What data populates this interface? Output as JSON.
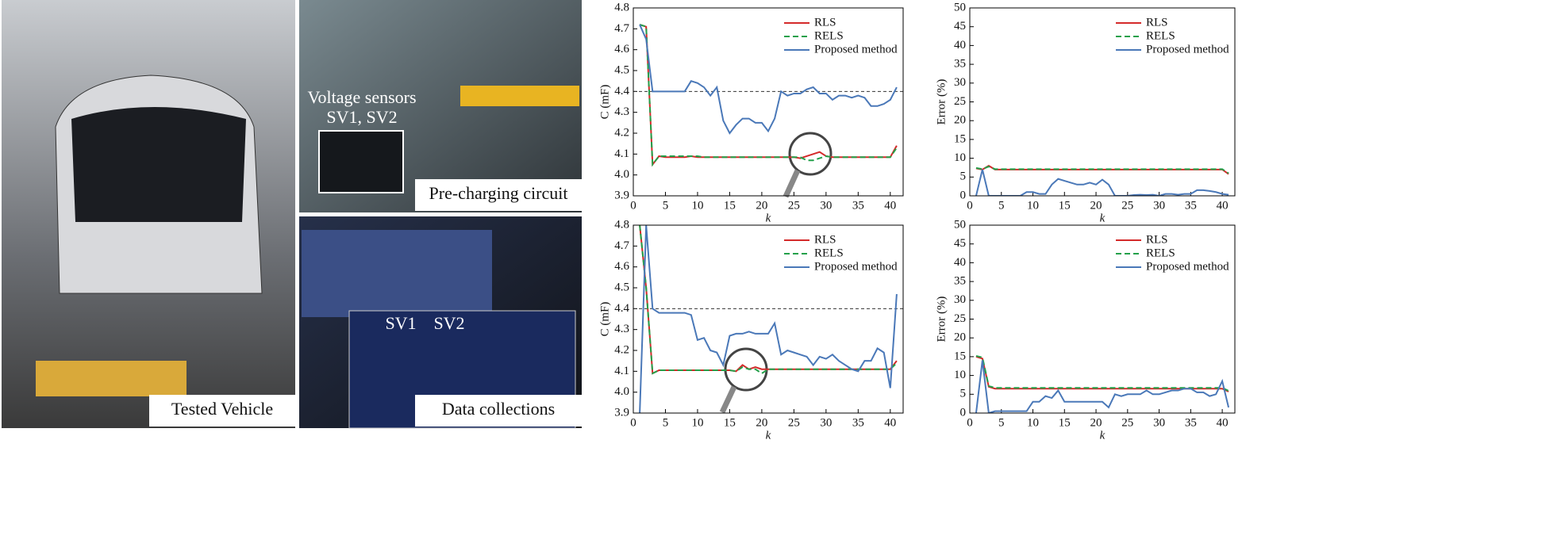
{
  "photos": [
    {
      "caption": "Tested Vehicle"
    },
    {
      "caption": "Pre-charging circuit",
      "labels": [
        "Voltage sensors",
        "SV1, SV2"
      ]
    },
    {
      "caption": "Data collections",
      "labels": [
        "SV1",
        "SV2"
      ]
    }
  ],
  "chart_data": [
    {
      "type": "line",
      "ylabel": "C (mF)",
      "xlabel": "k",
      "legend": "upper right",
      "refline": 4.4,
      "x": [
        1,
        2,
        3,
        4,
        5,
        6,
        7,
        8,
        9,
        10,
        11,
        12,
        13,
        14,
        15,
        16,
        17,
        18,
        19,
        20,
        21,
        22,
        23,
        24,
        25,
        26,
        27,
        28,
        29,
        30,
        31,
        32,
        33,
        34,
        35,
        36,
        37,
        38,
        39,
        40,
        41
      ],
      "xlim": [
        0,
        42
      ],
      "xticks": [
        0,
        5,
        10,
        15,
        20,
        25,
        30,
        35,
        40
      ],
      "ylim": [
        3.9,
        4.8
      ],
      "yticks": [
        3.9,
        {
          "value": 4.0,
          "label": "4.0"
        },
        4.1,
        4.2,
        4.3,
        4.4,
        4.5,
        4.6,
        4.7,
        4.8
      ],
      "series": [
        {
          "name": "RLS",
          "color": "#d42a2a",
          "dash": false,
          "values": [
            4.72,
            4.71,
            4.05,
            4.09,
            4.085,
            4.085,
            4.085,
            4.085,
            4.09,
            4.085,
            4.085,
            4.085,
            4.085,
            4.085,
            4.085,
            4.085,
            4.085,
            4.085,
            4.085,
            4.085,
            4.085,
            4.085,
            4.085,
            4.085,
            4.085,
            4.08,
            4.09,
            4.1,
            4.11,
            4.09,
            4.085,
            4.085,
            4.085,
            4.085,
            4.085,
            4.085,
            4.085,
            4.085,
            4.085,
            4.085,
            4.14
          ]
        },
        {
          "name": "RELS",
          "color": "#23a04a",
          "dash": true,
          "values": [
            4.72,
            4.71,
            4.05,
            4.09,
            4.09,
            4.09,
            4.09,
            4.09,
            4.09,
            4.09,
            4.085,
            4.085,
            4.085,
            4.085,
            4.085,
            4.085,
            4.085,
            4.085,
            4.085,
            4.085,
            4.085,
            4.085,
            4.085,
            4.085,
            4.085,
            4.085,
            4.07,
            4.07,
            4.08,
            4.09,
            4.085,
            4.085,
            4.085,
            4.085,
            4.085,
            4.085,
            4.085,
            4.085,
            4.085,
            4.085,
            4.13
          ]
        },
        {
          "name": "Proposed method",
          "color": "#4a78b8",
          "dash": false,
          "values": [
            4.72,
            4.65,
            4.4,
            4.4,
            4.4,
            4.4,
            4.4,
            4.4,
            4.45,
            4.44,
            4.42,
            4.38,
            4.42,
            4.26,
            4.2,
            4.24,
            4.27,
            4.27,
            4.25,
            4.25,
            4.21,
            4.27,
            4.4,
            4.38,
            4.39,
            4.39,
            4.41,
            4.42,
            4.39,
            4.39,
            4.36,
            4.38,
            4.38,
            4.37,
            4.38,
            4.37,
            4.33,
            4.33,
            4.34,
            4.36,
            4.42
          ]
        }
      ]
    },
    {
      "type": "line",
      "ylabel": "Error (%)",
      "xlabel": "k",
      "legend": "upper right",
      "x": [
        1,
        2,
        3,
        4,
        5,
        6,
        7,
        8,
        9,
        10,
        11,
        12,
        13,
        14,
        15,
        16,
        17,
        18,
        19,
        20,
        21,
        22,
        23,
        24,
        25,
        26,
        27,
        28,
        29,
        30,
        31,
        32,
        33,
        34,
        35,
        36,
        37,
        38,
        39,
        40,
        41
      ],
      "xlim": [
        0,
        42
      ],
      "xticks": [
        0,
        5,
        10,
        15,
        20,
        25,
        30,
        35,
        40
      ],
      "ylim": [
        0,
        50
      ],
      "yticks": [
        0,
        5,
        10,
        15,
        20,
        25,
        30,
        35,
        40,
        45,
        50
      ],
      "series": [
        {
          "name": "RLS",
          "color": "#d42a2a",
          "dash": false,
          "values": [
            7.3,
            7.0,
            8.0,
            7.0,
            7.0,
            7.0,
            7.0,
            7.0,
            7.0,
            7.0,
            7.0,
            7.0,
            7.0,
            7.0,
            7.0,
            7.0,
            7.0,
            7.0,
            7.0,
            7.0,
            7.0,
            7.0,
            7.0,
            7.0,
            7.0,
            7.0,
            7.0,
            7.0,
            7.0,
            7.0,
            7.0,
            7.0,
            7.0,
            7.0,
            7.0,
            7.0,
            7.0,
            7.0,
            7.0,
            7.0,
            5.8
          ]
        },
        {
          "name": "RELS",
          "color": "#23a04a",
          "dash": true,
          "values": [
            7.4,
            7.1,
            7.8,
            7.1,
            7.1,
            7.1,
            7.1,
            7.1,
            7.1,
            7.1,
            7.1,
            7.1,
            7.1,
            7.1,
            7.1,
            7.1,
            7.1,
            7.1,
            7.1,
            7.1,
            7.1,
            7.1,
            7.1,
            7.1,
            7.1,
            7.1,
            7.1,
            7.1,
            7.1,
            7.1,
            7.1,
            7.1,
            7.1,
            7.1,
            7.1,
            7.1,
            7.1,
            7.1,
            7.1,
            7.1,
            6.0
          ]
        },
        {
          "name": "Proposed method",
          "color": "#4a78b8",
          "dash": false,
          "values": [
            0,
            7,
            0,
            0,
            0,
            0,
            0,
            0,
            1,
            1,
            0.5,
            0.5,
            3,
            4.5,
            4,
            3.5,
            3,
            3,
            3.5,
            3,
            4.3,
            3,
            0,
            0,
            0,
            0.2,
            0.3,
            0.2,
            0.3,
            0,
            0.5,
            0.5,
            0.3,
            0.5,
            0.5,
            1.5,
            1.5,
            1.3,
            1.0,
            0.5,
            0.3
          ]
        }
      ]
    },
    {
      "type": "line",
      "ylabel": "C (mF)",
      "xlabel": "k",
      "legend": "upper right",
      "refline": 4.4,
      "x": [
        1,
        2,
        3,
        4,
        5,
        6,
        7,
        8,
        9,
        10,
        11,
        12,
        13,
        14,
        15,
        16,
        17,
        18,
        19,
        20,
        21,
        22,
        23,
        24,
        25,
        26,
        27,
        28,
        29,
        30,
        31,
        32,
        33,
        34,
        35,
        36,
        37,
        38,
        39,
        40,
        41
      ],
      "xlim": [
        0,
        42
      ],
      "xticks": [
        0,
        5,
        10,
        15,
        20,
        25,
        30,
        35,
        40
      ],
      "ylim": [
        3.9,
        4.8
      ],
      "yticks": [
        3.9,
        {
          "value": 4.0,
          "label": "4.0"
        },
        4.1,
        4.2,
        4.3,
        4.4,
        4.5,
        4.6,
        4.7,
        4.8
      ],
      "series": [
        {
          "name": "RLS",
          "color": "#d42a2a",
          "dash": false,
          "values": [
            4.8,
            4.5,
            4.09,
            4.105,
            4.105,
            4.105,
            4.105,
            4.105,
            4.105,
            4.105,
            4.105,
            4.105,
            4.105,
            4.105,
            4.105,
            4.1,
            4.13,
            4.11,
            4.12,
            4.11,
            4.11,
            4.11,
            4.11,
            4.11,
            4.11,
            4.11,
            4.11,
            4.11,
            4.11,
            4.11,
            4.11,
            4.11,
            4.11,
            4.11,
            4.11,
            4.11,
            4.11,
            4.11,
            4.11,
            4.11,
            4.15
          ]
        },
        {
          "name": "RELS",
          "color": "#23a04a",
          "dash": true,
          "values": [
            4.8,
            4.5,
            4.09,
            4.105,
            4.105,
            4.105,
            4.105,
            4.105,
            4.105,
            4.105,
            4.105,
            4.105,
            4.105,
            4.105,
            4.105,
            4.1,
            4.12,
            4.11,
            4.11,
            4.09,
            4.11,
            4.11,
            4.11,
            4.11,
            4.11,
            4.11,
            4.11,
            4.11,
            4.11,
            4.11,
            4.11,
            4.11,
            4.11,
            4.11,
            4.11,
            4.11,
            4.11,
            4.11,
            4.11,
            4.11,
            4.14
          ]
        },
        {
          "name": "Proposed method",
          "color": "#4a78b8",
          "dash": false,
          "values": [
            3.9,
            4.8,
            4.4,
            4.38,
            4.38,
            4.38,
            4.38,
            4.38,
            4.37,
            4.25,
            4.26,
            4.2,
            4.19,
            4.13,
            4.27,
            4.28,
            4.28,
            4.29,
            4.28,
            4.28,
            4.28,
            4.33,
            4.18,
            4.2,
            4.19,
            4.18,
            4.17,
            4.13,
            4.17,
            4.16,
            4.18,
            4.15,
            4.13,
            4.11,
            4.1,
            4.15,
            4.15,
            4.21,
            4.19,
            4.02,
            4.47
          ]
        }
      ]
    },
    {
      "type": "line",
      "ylabel": "Error (%)",
      "xlabel": "k",
      "legend": "upper right",
      "x": [
        1,
        2,
        3,
        4,
        5,
        6,
        7,
        8,
        9,
        10,
        11,
        12,
        13,
        14,
        15,
        16,
        17,
        18,
        19,
        20,
        21,
        22,
        23,
        24,
        25,
        26,
        27,
        28,
        29,
        30,
        31,
        32,
        33,
        34,
        35,
        36,
        37,
        38,
        39,
        40,
        41
      ],
      "xlim": [
        0,
        42
      ],
      "xticks": [
        0,
        5,
        10,
        15,
        20,
        25,
        30,
        35,
        40
      ],
      "ylim": [
        0,
        50
      ],
      "yticks": [
        0,
        5,
        10,
        15,
        20,
        25,
        30,
        35,
        40,
        45,
        50
      ],
      "series": [
        {
          "name": "RLS",
          "color": "#d42a2a",
          "dash": false,
          "values": [
            15,
            14.5,
            7,
            6.5,
            6.5,
            6.5,
            6.5,
            6.5,
            6.5,
            6.5,
            6.5,
            6.5,
            6.5,
            6.5,
            6.5,
            6.5,
            6.5,
            6.5,
            6.5,
            6.5,
            6.5,
            6.5,
            6.5,
            6.5,
            6.5,
            6.5,
            6.5,
            6.5,
            6.5,
            6.5,
            6.5,
            6.5,
            6.5,
            6.5,
            6.5,
            6.5,
            6.5,
            6.5,
            6.5,
            6.5,
            5.7
          ]
        },
        {
          "name": "RELS",
          "color": "#23a04a",
          "dash": true,
          "values": [
            15.2,
            14.8,
            7.2,
            6.7,
            6.7,
            6.7,
            6.7,
            6.7,
            6.7,
            6.7,
            6.7,
            6.7,
            6.7,
            6.7,
            6.7,
            6.7,
            6.7,
            6.7,
            6.7,
            6.7,
            6.7,
            6.7,
            6.7,
            6.7,
            6.7,
            6.7,
            6.7,
            6.7,
            6.7,
            6.7,
            6.7,
            6.7,
            6.7,
            6.7,
            6.7,
            6.7,
            6.7,
            6.7,
            6.7,
            6.7,
            5.9
          ]
        },
        {
          "name": "Proposed method",
          "color": "#4a78b8",
          "dash": false,
          "values": [
            0,
            14,
            0,
            0.5,
            0.5,
            0.5,
            0.5,
            0.5,
            0.5,
            3,
            3,
            4.5,
            4,
            6,
            3,
            3,
            3,
            3,
            3,
            3,
            3,
            1.5,
            5,
            4.5,
            5,
            5,
            5,
            6,
            5,
            5,
            5.5,
            6,
            6,
            6.5,
            6.5,
            5.5,
            5.5,
            4.5,
            5,
            8.5,
            1.5
          ]
        }
      ]
    }
  ]
}
